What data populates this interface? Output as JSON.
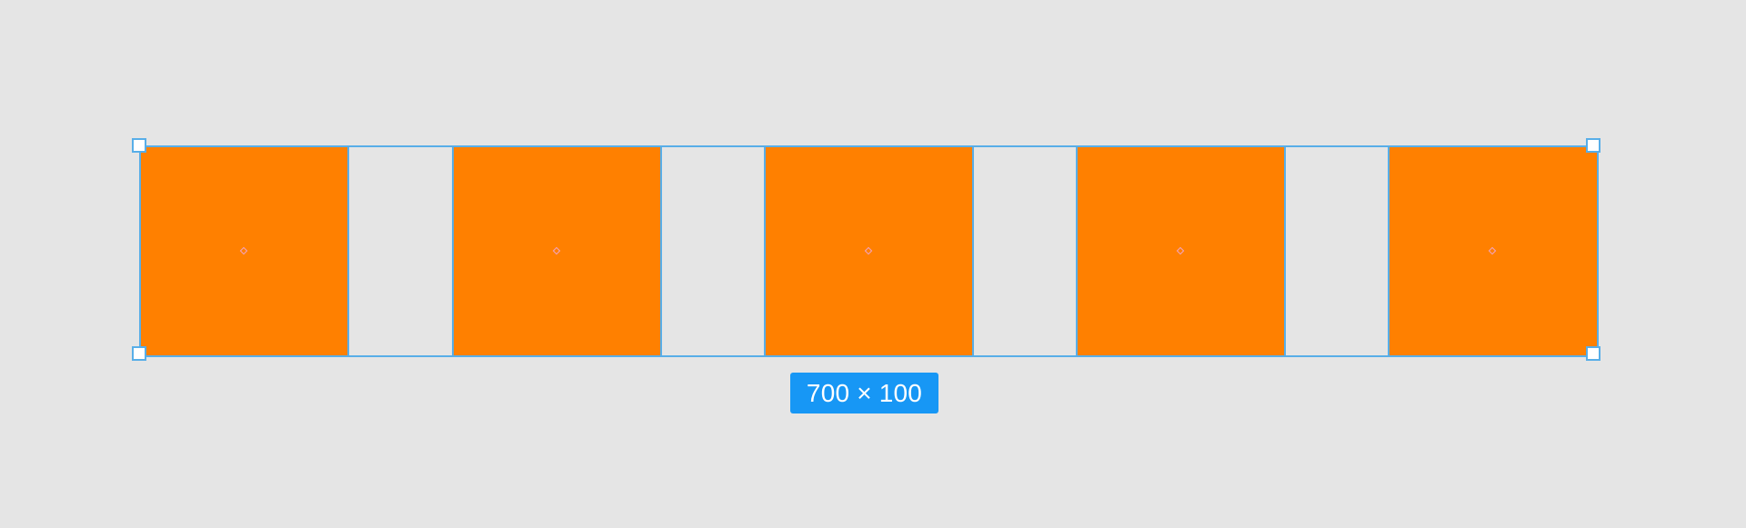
{
  "canvas": {
    "background": "#e5e5e5"
  },
  "selection": {
    "stroke_color": "#58aee8",
    "dimensions_label": "700 × 100",
    "badge_color": "#1797f5"
  },
  "items": [
    {
      "type": "square",
      "fill": "#ff8000"
    },
    {
      "type": "gap"
    },
    {
      "type": "square",
      "fill": "#ff8000"
    },
    {
      "type": "gap"
    },
    {
      "type": "square",
      "fill": "#ff8000"
    },
    {
      "type": "gap"
    },
    {
      "type": "square",
      "fill": "#ff8000"
    },
    {
      "type": "gap"
    },
    {
      "type": "square",
      "fill": "#ff8000"
    }
  ],
  "center_marker_color": "#f1a5c8"
}
